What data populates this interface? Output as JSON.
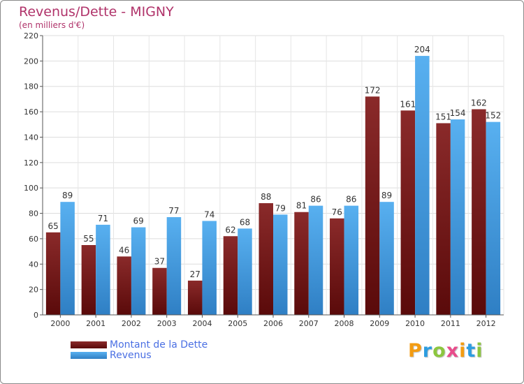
{
  "chart_data": {
    "type": "bar",
    "title": "Revenus/Dette - MIGNY",
    "subtitle": "(en milliers d'€)",
    "xlabel": "",
    "ylabel": "",
    "categories": [
      "2000",
      "2001",
      "2002",
      "2003",
      "2004",
      "2005",
      "2006",
      "2007",
      "2008",
      "2009",
      "2010",
      "2011",
      "2012"
    ],
    "series": [
      {
        "name": "Montant de la Dette",
        "color": "#7a1e1e",
        "values": [
          65,
          55,
          46,
          37,
          27,
          62,
          88,
          81,
          76,
          172,
          161,
          151,
          162
        ]
      },
      {
        "name": "Revenus",
        "color": "#3d9be9",
        "values": [
          89,
          71,
          69,
          77,
          74,
          68,
          79,
          86,
          86,
          89,
          204,
          154,
          152
        ]
      }
    ],
    "ylim": [
      0,
      220
    ],
    "yticks": [
      0,
      20,
      40,
      60,
      80,
      100,
      120,
      140,
      160,
      180,
      200,
      220
    ],
    "grid": true,
    "legend": "bottom-left"
  },
  "brand": {
    "name": "Proxiti",
    "letters": [
      "P",
      "r",
      "o",
      "x",
      "i",
      "t",
      "i"
    ],
    "letter_colors": [
      "#f39c12",
      "#2d9de0",
      "#8cc63f",
      "#e84c8b",
      "#f39c12",
      "#2d9de0",
      "#8cc63f"
    ]
  }
}
